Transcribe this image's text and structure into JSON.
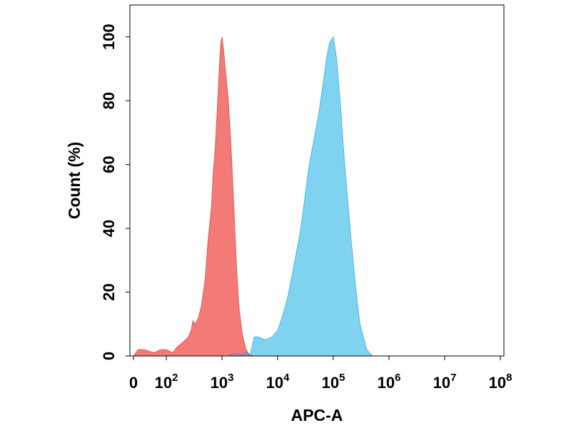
{
  "chart_data": {
    "type": "area",
    "title": "",
    "xlabel": "APC-A",
    "ylabel": "Count  (%)",
    "x_scale": "biexponential",
    "xlim": [
      0,
      100000000
    ],
    "ylim": [
      0,
      110
    ],
    "grid": false,
    "x_ticks": [
      {
        "base": "0",
        "exp": ""
      },
      {
        "base": "10",
        "exp": "2"
      },
      {
        "base": "10",
        "exp": "3"
      },
      {
        "base": "10",
        "exp": "4"
      },
      {
        "base": "10",
        "exp": "5"
      },
      {
        "base": "10",
        "exp": "6"
      },
      {
        "base": "10",
        "exp": "7"
      },
      {
        "base": "10",
        "exp": "8"
      }
    ],
    "y_ticks": [
      "0",
      "20",
      "40",
      "60",
      "80",
      "100"
    ],
    "series": [
      {
        "color": "#f47a78",
        "stroke": "#e05a58",
        "points": [
          [
            0,
            0
          ],
          [
            2,
            2
          ],
          [
            10,
            2
          ],
          [
            40,
            1
          ],
          [
            70,
            2
          ],
          [
            100,
            2
          ],
          [
            130,
            1
          ],
          [
            160,
            3
          ],
          [
            190,
            4
          ],
          [
            220,
            5
          ],
          [
            250,
            6
          ],
          [
            280,
            8
          ],
          [
            300,
            11
          ],
          [
            330,
            10
          ],
          [
            380,
            12
          ],
          [
            430,
            16
          ],
          [
            500,
            24
          ],
          [
            560,
            36
          ],
          [
            600,
            41
          ],
          [
            650,
            47
          ],
          [
            700,
            58
          ],
          [
            750,
            64
          ],
          [
            800,
            73
          ],
          [
            850,
            82
          ],
          [
            900,
            91
          ],
          [
            950,
            98
          ],
          [
            1000,
            100
          ],
          [
            1050,
            97
          ],
          [
            1150,
            90
          ],
          [
            1300,
            80
          ],
          [
            1450,
            66
          ],
          [
            1600,
            50
          ],
          [
            1800,
            30
          ],
          [
            2000,
            16
          ],
          [
            2300,
            7
          ],
          [
            2700,
            2
          ],
          [
            3200,
            0
          ]
        ]
      },
      {
        "color": "#7fd3f1",
        "stroke": "#52b8e0",
        "points": [
          [
            3200,
            0
          ],
          [
            3800,
            6
          ],
          [
            4500,
            6
          ],
          [
            6000,
            5
          ],
          [
            8000,
            6
          ],
          [
            10000,
            8
          ],
          [
            12000,
            12
          ],
          [
            15000,
            18
          ],
          [
            18000,
            25
          ],
          [
            22000,
            33
          ],
          [
            25000,
            38
          ],
          [
            28000,
            44
          ],
          [
            32000,
            52
          ],
          [
            37000,
            60
          ],
          [
            45000,
            68
          ],
          [
            55000,
            76
          ],
          [
            65000,
            85
          ],
          [
            75000,
            93
          ],
          [
            85000,
            98
          ],
          [
            100000,
            100
          ],
          [
            115000,
            93
          ],
          [
            135000,
            78
          ],
          [
            160000,
            60
          ],
          [
            200000,
            40
          ],
          [
            250000,
            22
          ],
          [
            300000,
            10
          ],
          [
            400000,
            2
          ],
          [
            500000,
            0
          ]
        ]
      },
      {
        "color": "#9b8bb3",
        "stroke": "#8a7ba5",
        "points": [
          [
            1300,
            0
          ],
          [
            1500,
            0.6
          ],
          [
            1800,
            0.8
          ],
          [
            2300,
            0.5
          ],
          [
            2800,
            1.3
          ],
          [
            3300,
            0.2
          ],
          [
            3800,
            0
          ]
        ]
      }
    ]
  }
}
